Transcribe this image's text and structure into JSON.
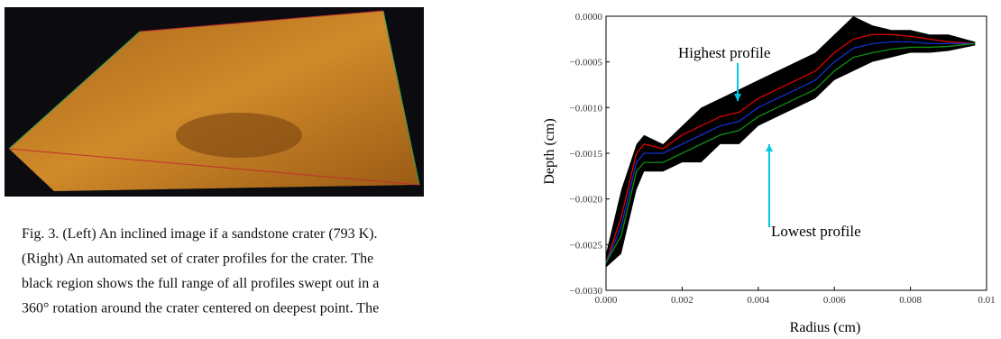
{
  "caption": {
    "lines": [
      "Fig. 3. (Left) An inclined image if a sandstone crater (793 K).",
      "(Right) An automated set of crater profiles for the crater. The",
      "black region shows the full range of all profiles swept out in a",
      "360° rotation around the crater centered on deepest point. The"
    ]
  },
  "chart_data": {
    "type": "line",
    "xlabel": "Radius (cm)",
    "ylabel": "Depth (cm)",
    "annotations": [
      "Highest profile",
      "Lowest profile"
    ],
    "x": [
      0,
      0.0004,
      0.0008,
      0.001,
      0.0015,
      0.002,
      0.0025,
      0.003,
      0.0035,
      0.004,
      0.0045,
      0.005,
      0.0055,
      0.006,
      0.0065,
      0.007,
      0.0075,
      0.008,
      0.0085,
      0.009,
      0.0097
    ],
    "band": {
      "color": "#000000",
      "upper": [
        -0.0026,
        -0.0019,
        -0.0014,
        -0.0013,
        -0.0014,
        -0.0012,
        -0.001,
        -0.0009,
        -0.0008,
        -0.0007,
        -0.0006,
        -0.0005,
        -0.0004,
        -0.0002,
        0,
        -0.0001,
        -0.00015,
        -0.00015,
        -0.0002,
        -0.0002,
        -0.00028
      ],
      "lower": [
        -0.00275,
        -0.0026,
        -0.0019,
        -0.0017,
        -0.0017,
        -0.0016,
        -0.0016,
        -0.0014,
        -0.0014,
        -0.0012,
        -0.0011,
        -0.001,
        -0.0009,
        -0.0007,
        -0.0006,
        -0.0005,
        -0.00045,
        -0.0004,
        -0.0004,
        -0.00038,
        -0.00032
      ]
    },
    "series": [
      {
        "color": "#e00000",
        "values": [
          -0.0027,
          -0.0022,
          -0.0015,
          -0.0014,
          -0.00145,
          -0.0013,
          -0.0012,
          -0.0011,
          -0.00105,
          -0.0009,
          -0.0008,
          -0.0007,
          -0.0006,
          -0.0004,
          -0.00025,
          -0.0002,
          -0.0002,
          -0.00022,
          -0.00025,
          -0.00028,
          -0.0003
        ]
      },
      {
        "color": "#1030d0",
        "values": [
          -0.0027,
          -0.0023,
          -0.0016,
          -0.0015,
          -0.0015,
          -0.0014,
          -0.0013,
          -0.0012,
          -0.00115,
          -0.001,
          -0.0009,
          -0.0008,
          -0.0007,
          -0.0005,
          -0.00035,
          -0.0003,
          -0.00028,
          -0.00028,
          -0.0003,
          -0.0003,
          -0.0003
        ]
      },
      {
        "color": "#109010",
        "values": [
          -0.0027,
          -0.0024,
          -0.0017,
          -0.0016,
          -0.0016,
          -0.0015,
          -0.0014,
          -0.0013,
          -0.00125,
          -0.0011,
          -0.001,
          -0.0009,
          -0.0008,
          -0.0006,
          -0.00045,
          -0.0004,
          -0.00036,
          -0.00034,
          -0.00034,
          -0.00033,
          -0.0003
        ]
      }
    ],
    "xlim": [
      0,
      0.01
    ],
    "xticks": [
      {
        "value": 0,
        "label": "0.000"
      },
      {
        "value": 0.002,
        "label": "0.002"
      },
      {
        "value": 0.004,
        "label": "0.004"
      },
      {
        "value": 0.006,
        "label": "0.006"
      },
      {
        "value": 0.008,
        "label": "0.008"
      },
      0.01
    ],
    "ylim": [
      -0.003,
      0
    ],
    "yticks": [
      {
        "value": 0,
        "label": "0.0000"
      },
      {
        "value": -0.0005,
        "label": "−0.0005"
      },
      {
        "value": -0.001,
        "label": "−0.0010"
      },
      {
        "value": -0.0015,
        "label": "−0.0015"
      },
      {
        "value": -0.002,
        "label": "−0.0020"
      },
      {
        "value": -0.0025,
        "label": "−0.0025"
      },
      {
        "value": -0.003,
        "label": "−0.0030"
      }
    ],
    "grid": false
  }
}
